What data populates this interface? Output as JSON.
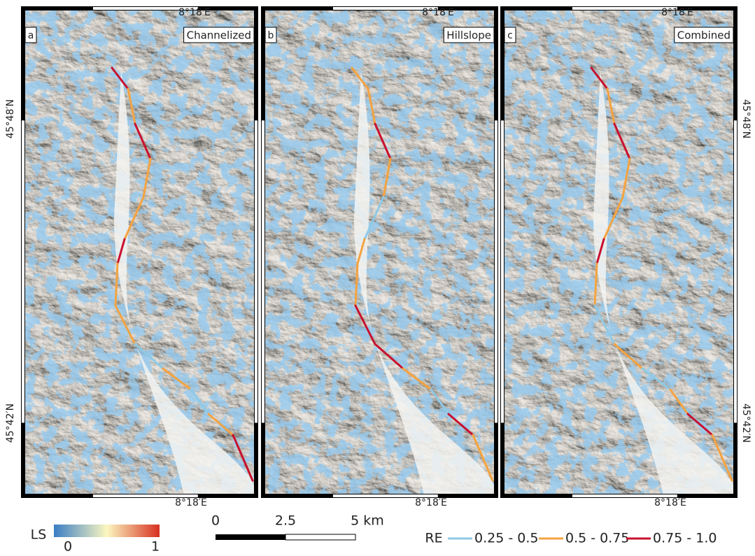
{
  "panels": [
    {
      "letter": "a",
      "title": "Channelized"
    },
    {
      "letter": "b",
      "title": "Hillslope"
    },
    {
      "letter": "c",
      "title": "Combined"
    }
  ],
  "coordinates": {
    "top": "8°18′E",
    "bottom": "8°18′E",
    "lat_north": "45°48′N",
    "lat_south": "45°42′N"
  },
  "legend": {
    "ls_label": "LS",
    "ls_min": "0",
    "ls_max": "1",
    "scale_labels": [
      "0",
      "2.5",
      "5 km"
    ],
    "re_label": "RE",
    "classes": [
      {
        "label": "0.25 - 0.5",
        "color": "#8ecae6"
      },
      {
        "label": "0.5 - 0.75",
        "color": "#f4a340"
      },
      {
        "label": "0.75 - 1.0",
        "color": "#c8102e"
      }
    ]
  }
}
